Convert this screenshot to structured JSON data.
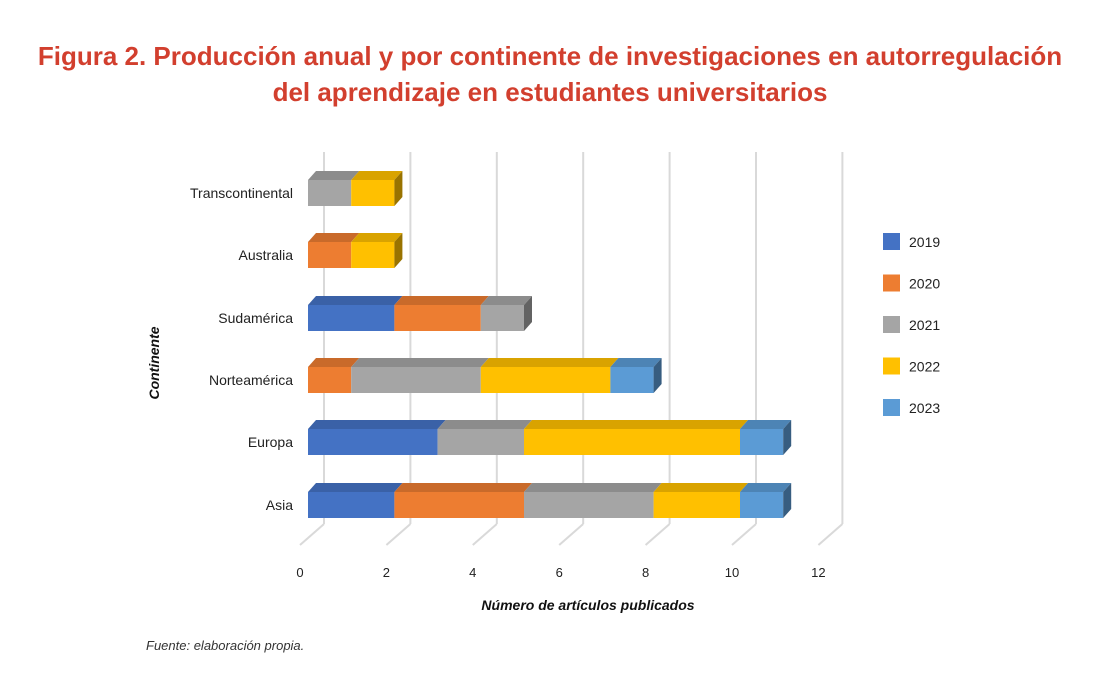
{
  "title_line1": "Figura 2. Producción anual y por continente de investigaciones en autorregulación",
  "title_line2": "del aprendizaje en estudiantes universitarios",
  "source_text": "Fuente: elaboración propia.",
  "colors": {
    "title": "#d23f2e",
    "grid": "#d9d9d9",
    "text": "#222222"
  },
  "chart_data": {
    "type": "bar",
    "orientation": "horizontal",
    "stacked": true,
    "three_d": true,
    "xlabel": "Número de artículos publicados",
    "ylabel": "Continente",
    "xlim": [
      0,
      12
    ],
    "xticks": [
      0,
      2,
      4,
      6,
      8,
      10,
      12
    ],
    "grid": true,
    "legend_position": "right",
    "categories": [
      "Transcontinental",
      "Australia",
      "Sudamérica",
      "Norteamérica",
      "Europa",
      "Asia"
    ],
    "series": [
      {
        "name": "2019",
        "color": "#4472c4",
        "values": [
          0,
          0,
          2,
          0,
          3,
          2
        ]
      },
      {
        "name": "2020",
        "color": "#ed7d31",
        "values": [
          0,
          1,
          2,
          1,
          0,
          3
        ]
      },
      {
        "name": "2021",
        "color": "#a5a5a5",
        "values": [
          1,
          0,
          1,
          3,
          2,
          3
        ]
      },
      {
        "name": "2022",
        "color": "#ffc000",
        "values": [
          1,
          1,
          0,
          3,
          5,
          2
        ]
      },
      {
        "name": "2023",
        "color": "#5b9bd5",
        "values": [
          0,
          0,
          0,
          1,
          1,
          1
        ]
      }
    ]
  }
}
